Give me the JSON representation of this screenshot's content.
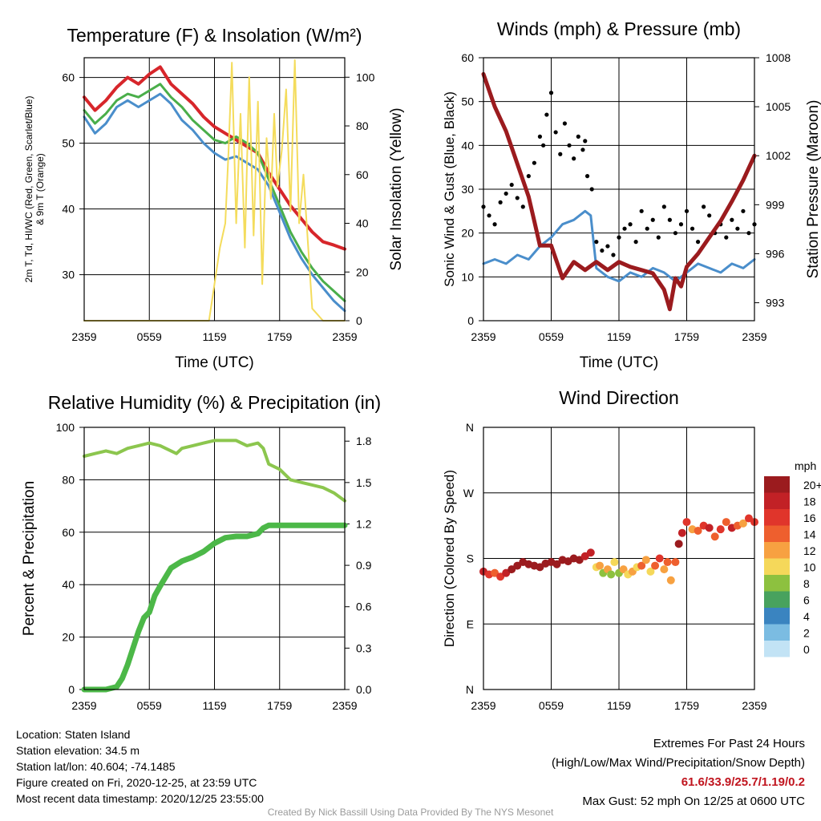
{
  "info": {
    "location": "Location: Staten Island",
    "elevation": "Station elevation: 34.5 m",
    "latlon": "Station lat/lon: 40.604; -74.1485",
    "created": "Figure created on Fri, 2020-12-25, at 23:59 UTC",
    "recent": "Most recent data timestamp: 2020/12/25 23:55:00",
    "extremes_title": "Extremes For Past 24 Hours",
    "extremes_legend": "(High/Low/Max Wind/Precipitation/Snow Depth)",
    "extremes_values": "61.6/33.9/25.7/1.19/0.2",
    "max_gust": "Max Gust: 52 mph On 12/25 at 0600 UTC",
    "credit": "Created By Nick Bassill Using Data Provided By The NYS Mesonet"
  },
  "time_ticks": [
    "2359",
    "0559",
    "1159",
    "1759",
    "2359"
  ],
  "chart_data": [
    {
      "type": "line",
      "title": "Temperature (F) & Insolation (W/m²)",
      "xlabel": "Time (UTC)",
      "ylabel": "2m T, Td, HI/WC (Red, Green, Scarlet/Blue) & 9m T (Orange)",
      "y2label": "Solar Insolation (Yellow)",
      "x_hours": [
        0,
        24
      ],
      "ylim": [
        23,
        63
      ],
      "yticks": [
        30,
        40,
        50,
        60
      ],
      "y2lim": [
        0,
        108
      ],
      "y2ticks": [
        0,
        20,
        40,
        60,
        80,
        100
      ],
      "grid": true,
      "series": [
        {
          "axis": "left",
          "color": "#d7262b",
          "width": 4,
          "x": [
            0,
            1,
            2,
            3,
            4,
            5,
            6,
            7,
            8,
            9,
            10,
            11,
            12,
            13,
            14,
            15,
            16,
            17,
            18,
            19,
            20,
            21,
            22,
            23,
            24
          ],
          "y": [
            57.0,
            55.0,
            56.5,
            58.5,
            60.0,
            59.0,
            60.5,
            61.6,
            59.0,
            57.5,
            56.0,
            54.0,
            52.5,
            51.5,
            50.5,
            49.5,
            48.5,
            45.5,
            43.0,
            40.5,
            38.5,
            36.5,
            35.0,
            34.5,
            33.9
          ]
        },
        {
          "axis": "left",
          "color": "#4aae4a",
          "width": 3,
          "x": [
            0,
            1,
            2,
            3,
            4,
            5,
            6,
            7,
            8,
            9,
            10,
            11,
            12,
            13,
            14,
            15,
            16,
            17,
            18,
            19,
            20,
            21,
            22,
            23,
            24
          ],
          "y": [
            55.0,
            53.0,
            54.5,
            56.5,
            57.5,
            57.0,
            58.0,
            59.0,
            57.0,
            55.5,
            53.5,
            52.0,
            50.5,
            50.0,
            51.0,
            50.0,
            48.5,
            44.5,
            40.5,
            36.5,
            33.5,
            31.0,
            29.0,
            27.5,
            26.0
          ]
        },
        {
          "axis": "left",
          "color": "#4a8ecb",
          "width": 3,
          "x": [
            0,
            1,
            2,
            3,
            4,
            5,
            5.5,
            7,
            8,
            9,
            10,
            11,
            12,
            13,
            14,
            15,
            16,
            17,
            18,
            19,
            20,
            21,
            22,
            23,
            24
          ],
          "y": [
            54.0,
            51.5,
            53.0,
            55.5,
            56.5,
            55.5,
            56.0,
            57.5,
            56.0,
            53.5,
            52.0,
            50.0,
            48.5,
            47.5,
            48.0,
            47.0,
            46.0,
            43.5,
            39.5,
            35.5,
            32.5,
            30.0,
            28.0,
            26.0,
            24.5
          ]
        },
        {
          "axis": "right",
          "color": "#f4dc5c",
          "width": 2,
          "x": [
            0,
            10.5,
            11.5,
            12,
            12.5,
            13,
            13.3,
            13.6,
            14,
            14.4,
            14.8,
            15.2,
            15.6,
            16,
            16.4,
            16.8,
            17.2,
            17.5,
            17.8,
            18.2,
            18.6,
            19,
            19.4,
            19.8,
            20.2,
            21,
            22,
            23,
            24
          ],
          "y": [
            0,
            0,
            0,
            15,
            30,
            40,
            70,
            106,
            40,
            85,
            30,
            100,
            35,
            90,
            15,
            75,
            50,
            85,
            55,
            70,
            95,
            45,
            107,
            40,
            60,
            5,
            0,
            0,
            0
          ]
        }
      ]
    },
    {
      "type": "line",
      "title": "Winds (mph) & Pressure (mb)",
      "xlabel": "Time (UTC)",
      "ylabel": "Sonic Wind & Gust (Blue, Black)",
      "y2label": "Station Pressure (Maroon)",
      "x_hours": [
        0,
        24
      ],
      "ylim": [
        0,
        60
      ],
      "yticks": [
        0,
        10,
        20,
        30,
        40,
        50,
        60
      ],
      "y2lim": [
        991.9,
        1008
      ],
      "y2ticks": [
        993,
        996,
        999,
        1002,
        1005,
        1008
      ],
      "grid": true,
      "series": [
        {
          "axis": "left",
          "color": "#4a8ecb",
          "width": 3,
          "x": [
            0,
            1,
            2,
            3,
            4,
            5,
            6,
            7,
            8,
            9,
            9.5,
            10,
            11,
            12,
            13,
            14,
            15,
            16,
            17,
            18,
            19,
            20,
            21,
            22,
            23,
            24
          ],
          "y": [
            13,
            14,
            13,
            15,
            14,
            17,
            19,
            22,
            23,
            25,
            24,
            12,
            10,
            9,
            11,
            10,
            12,
            11,
            9,
            11,
            13,
            12,
            11,
            13,
            12,
            14
          ]
        },
        {
          "axis": "left",
          "color": "#000000",
          "mode": "markers",
          "x": [
            0,
            0.5,
            1,
            1.5,
            2,
            2.5,
            3,
            3.5,
            4,
            4.5,
            5,
            5.3,
            5.6,
            6,
            6.4,
            6.8,
            7.2,
            7.6,
            8,
            8.4,
            8.8,
            9,
            9.2,
            9.6,
            10,
            10.5,
            11,
            11.5,
            12,
            12.5,
            13,
            13.5,
            14,
            14.5,
            15,
            15.5,
            16,
            16.5,
            17,
            17.5,
            18,
            18.5,
            19,
            19.5,
            20,
            20.5,
            21,
            21.5,
            22,
            22.5,
            23,
            23.5,
            24
          ],
          "y": [
            26,
            24,
            22,
            27,
            29,
            31,
            28,
            26,
            33,
            36,
            42,
            40,
            47,
            52,
            43,
            38,
            45,
            40,
            37,
            42,
            39,
            41,
            33,
            30,
            18,
            16,
            17,
            15,
            19,
            21,
            22,
            18,
            25,
            21,
            23,
            19,
            26,
            23,
            20,
            22,
            25,
            21,
            18,
            26,
            24,
            20,
            22,
            19,
            23,
            21,
            25,
            20,
            22
          ]
        },
        {
          "axis": "right",
          "color": "#9b1b1e",
          "width": 5,
          "x": [
            0,
            1,
            2,
            3,
            4,
            4.5,
            5,
            6,
            7,
            8,
            9,
            10,
            11,
            12,
            13,
            14,
            15,
            16,
            16.5,
            17,
            17.5,
            18,
            19,
            20,
            21,
            22,
            23,
            24
          ],
          "y": [
            1007,
            1005,
            1003.5,
            1001.5,
            999.5,
            998,
            996.5,
            996.5,
            994.5,
            995.5,
            995,
            995.5,
            995,
            995.5,
            995.2,
            995,
            994.8,
            993.8,
            992.6,
            994.5,
            994,
            995.2,
            996,
            997,
            998,
            999.2,
            1000.5,
            1002
          ]
        }
      ]
    },
    {
      "type": "line",
      "title": "Relative Humidity (%) & Precipitation (in)",
      "xlabel": "",
      "ylabel": "Percent & Precipitation",
      "x_hours": [
        0,
        24
      ],
      "ylim": [
        0,
        100
      ],
      "yticks": [
        0,
        20,
        40,
        60,
        80,
        100
      ],
      "y2lim": [
        0,
        1.9
      ],
      "y2ticks": [
        "0.0",
        "0.3",
        "0.6",
        "0.9",
        "1.2",
        "1.5",
        "1.8"
      ],
      "grid": true,
      "series": [
        {
          "axis": "left",
          "color": "#8cc64e",
          "width": 4,
          "x": [
            0,
            1,
            2,
            3,
            4,
            5,
            6,
            7,
            8,
            8.5,
            9,
            10,
            11,
            12,
            13,
            14,
            15,
            16,
            16.5,
            17,
            18,
            19,
            20,
            21,
            22,
            23,
            24
          ],
          "y": [
            89,
            90,
            91,
            90,
            92,
            93,
            94,
            93,
            91,
            90,
            92,
            93,
            94,
            95,
            95,
            95,
            93,
            94,
            92,
            86,
            84,
            80,
            79,
            78,
            77,
            75,
            72
          ]
        },
        {
          "axis": "right",
          "color": "#4cb848",
          "width": 7,
          "x": [
            0,
            1,
            2,
            3,
            3.5,
            4,
            4.5,
            5,
            5.5,
            6,
            6.5,
            7,
            8,
            9,
            10,
            11,
            12,
            13,
            14,
            15,
            16,
            16.5,
            17,
            18,
            19,
            20,
            21,
            22,
            23,
            24
          ],
          "y": [
            0,
            0,
            0,
            0.02,
            0.08,
            0.18,
            0.3,
            0.42,
            0.52,
            0.56,
            0.68,
            0.75,
            0.88,
            0.93,
            0.96,
            1.0,
            1.06,
            1.1,
            1.11,
            1.11,
            1.13,
            1.17,
            1.19,
            1.19,
            1.19,
            1.19,
            1.19,
            1.19,
            1.19,
            1.19
          ]
        }
      ]
    },
    {
      "type": "scatter",
      "title": "Wind Direction",
      "xlabel": "",
      "ylabel": "Direction (Colored By Speed)",
      "x_hours": [
        0,
        24
      ],
      "yticks": [
        "N",
        "E",
        "S",
        "W",
        "N"
      ],
      "ylim": [
        0,
        360
      ],
      "grid": true,
      "legend": {
        "title": "mph",
        "labels": [
          "20+",
          "18",
          "16",
          "14",
          "12",
          "10",
          "8",
          "6",
          "4",
          "2",
          "0"
        ],
        "colors": [
          "#9b1b1e",
          "#c22126",
          "#e0352b",
          "#ee5f2e",
          "#f7a141",
          "#f5d85a",
          "#8dc13f",
          "#48a25e",
          "#3a84c0",
          "#7bbce2",
          "#c2e3f5"
        ],
        "placement": "right"
      },
      "points": {
        "x": [
          0,
          0.5,
          1,
          1.5,
          2,
          2.5,
          3,
          3.5,
          4,
          4.5,
          5,
          5.5,
          6,
          6.5,
          7,
          7.5,
          8,
          8.5,
          9,
          9.5,
          10,
          10.3,
          10.6,
          11,
          11.3,
          11.6,
          12,
          12.4,
          12.8,
          13.2,
          13.6,
          14,
          14.4,
          14.8,
          15.2,
          15.6,
          16,
          16.3,
          16.6,
          17,
          17.3,
          17.6,
          18,
          18.5,
          19,
          19.5,
          20,
          20.5,
          21,
          21.5,
          22,
          22.5,
          23,
          23.5,
          24
        ],
        "y": [
          162,
          158,
          160,
          155,
          160,
          165,
          170,
          175,
          172,
          170,
          168,
          173,
          175,
          172,
          178,
          176,
          180,
          178,
          183,
          188,
          168,
          170,
          160,
          165,
          158,
          175,
          160,
          165,
          158,
          162,
          168,
          170,
          178,
          162,
          170,
          180,
          165,
          175,
          150,
          175,
          200,
          215,
          230,
          220,
          218,
          225,
          222,
          210,
          220,
          230,
          222,
          225,
          228,
          235,
          230
        ],
        "speed": [
          17,
          16,
          14,
          15,
          18,
          19,
          20,
          21,
          20,
          19,
          20,
          21,
          20,
          21,
          20,
          21,
          20,
          19,
          18,
          17,
          9,
          11,
          8,
          12,
          7,
          10,
          8,
          11,
          9,
          12,
          10,
          13,
          12,
          9,
          14,
          15,
          11,
          13,
          12,
          14,
          20,
          18,
          16,
          12,
          14,
          15,
          17,
          13,
          16,
          14,
          18,
          13,
          12,
          15,
          16
        ]
      }
    }
  ]
}
